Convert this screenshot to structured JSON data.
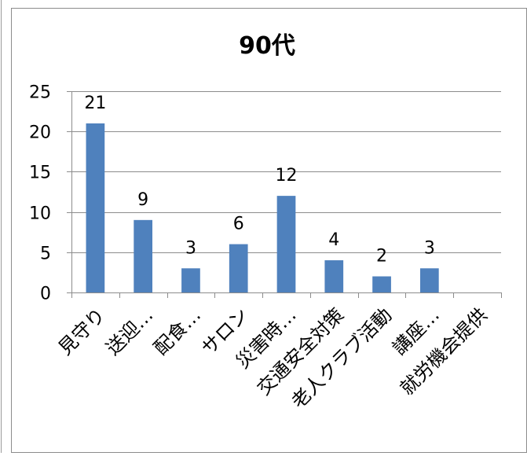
{
  "chart_data": {
    "type": "bar",
    "title": "90代",
    "categories": [
      "見守り",
      "送迎…",
      "配食…",
      "サロン",
      "災害時…",
      "交通安全対策",
      "老人クラブ活動",
      "講座…",
      "就労機会提供"
    ],
    "values": [
      21,
      9,
      3,
      6,
      12,
      4,
      2,
      3,
      null
    ],
    "data_labels": [
      "21",
      "9",
      "3",
      "6",
      "12",
      "4",
      "2",
      "3",
      ""
    ],
    "ylim": [
      0,
      25
    ],
    "yticks": [
      0,
      5,
      10,
      15,
      20,
      25
    ],
    "grid": true,
    "legend": "none",
    "bar_color": "#4F81BD",
    "xlabel": "",
    "ylabel": ""
  }
}
